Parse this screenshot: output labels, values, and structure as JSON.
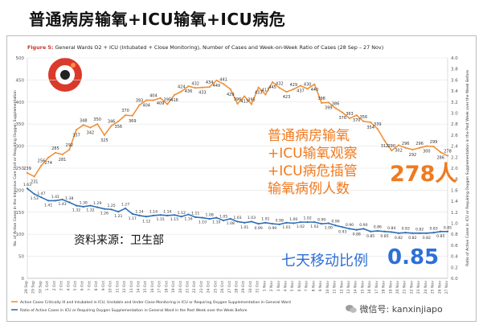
{
  "page_title": "普通病房输氧+ICU输氧+ICU病危",
  "figure": {
    "label": "Figure 5:",
    "title": "General Wards O2 + ICU (Intubated + Close Monitoring), Number of Cases and Week-on-Week Ratio of Cases (28 Sep – 27 Nov)"
  },
  "annotation": {
    "lines": [
      "普通病房输氧",
      "+ICU输氧观察",
      "+ICU病危插管",
      "输氧病例人数"
    ],
    "value": "278人"
  },
  "source_text": "资料来源：卫生部",
  "wow": {
    "label": "七天移动比例",
    "value": "0.85"
  },
  "watermark": "微信号: kanxinjiapo",
  "colors": {
    "orange": "#f0913a",
    "blue": "#2f6eb5",
    "grid": "#e3e3e3",
    "accent_text": "#f07a1e"
  },
  "chart_data": {
    "type": "line",
    "ylabel_left": "No. of Active Cases in the Intensive Care Unit or Requiring Oxygen Supplementation",
    "ylabel_right": "Ratio of Active Cases in ICU or Requiring Oxygen Supplementation in the Past Week over the Week Before",
    "ylim_left": [
      0,
      500
    ],
    "ylim_right": [
      0,
      4.0
    ],
    "yticks_left": [
      "0",
      "50",
      "100",
      "150",
      "200",
      "250",
      "300",
      "350",
      "400",
      "450",
      "500"
    ],
    "yticks_right": [
      "0.0",
      "0.2",
      "0.4",
      "0.6",
      "0.8",
      "1.0",
      "1.2",
      "1.4",
      "1.6",
      "1.8",
      "2.0",
      "2.2",
      "2.4",
      "2.6",
      "2.8",
      "3.0",
      "3.2",
      "3.4",
      "3.6",
      "3.8",
      "4.0"
    ],
    "x": [
      "28 Sep",
      "29 Sep",
      "30 Sep",
      "1 Oct",
      "2 Oct",
      "3 Oct",
      "4 Oct",
      "5 Oct",
      "6 Oct",
      "7 Oct",
      "8 Oct",
      "9 Oct",
      "10 Oct",
      "11 Oct",
      "12 Oct",
      "13 Oct",
      "14 Oct",
      "15 Oct",
      "16 Oct",
      "17 Oct",
      "18 Oct",
      "19 Oct",
      "20 Oct",
      "21 Oct",
      "22 Oct",
      "23 Oct",
      "24 Oct",
      "25 Oct",
      "26 Oct",
      "27 Oct",
      "28 Oct",
      "29 Oct",
      "30 Oct",
      "31 Oct",
      "1 Nov",
      "2 Nov",
      "3 Nov",
      "4 Nov",
      "5 Nov",
      "6 Nov",
      "7 Nov",
      "8 Nov",
      "9 Nov",
      "10 Nov",
      "11 Nov",
      "12 Nov",
      "13 Nov",
      "14 Nov",
      "15 Nov",
      "16 Nov",
      "17 Nov",
      "18 Nov",
      "19 Nov",
      "20 Nov",
      "21 Nov",
      "22 Nov",
      "23 Nov",
      "24 Nov",
      "25 Nov",
      "26 Nov",
      "27 Nov"
    ],
    "series": [
      {
        "name": "Active Cases Critically Ill and Intubated in ICU, Unstable and Under Close Monitoring in ICU or Requiring Oxygen Supplementation in General Ward",
        "axis": "left",
        "values": [
          239,
          231,
          256,
          274,
          285,
          281,
          292,
          337,
          348,
          342,
          350,
          325,
          346,
          356,
          370,
          369,
          393,
          404,
          404,
          409,
          395,
          416,
          424,
          436,
          432,
          433,
          434,
          449,
          441,
          429,
          396,
          413,
          395,
          433,
          417,
          445,
          432,
          423,
          429,
          437,
          430,
          440,
          398,
          399,
          386,
          376,
          363,
          370,
          356,
          354,
          339,
          312,
          290,
          302,
          296,
          292,
          296,
          300,
          299,
          286,
          278
        ],
        "labels": [
          "239",
          "231",
          "256",
          "274",
          "285",
          "281",
          "292",
          "337",
          "348",
          "342",
          "350",
          "325",
          "346",
          "356",
          "370",
          "369",
          "393",
          "404",
          "404",
          "409",
          "395",
          "416",
          "424",
          "436",
          "432",
          "433",
          "434",
          "449",
          "441",
          "429",
          "396",
          "413",
          "395",
          "433",
          "417",
          "445",
          "432",
          "423",
          "429",
          "437",
          "430",
          "440",
          "398",
          "399",
          "386",
          "376",
          "363",
          "370",
          "356",
          "354",
          "339",
          "312",
          "290",
          "302",
          "296",
          "292",
          "296",
          "300",
          "299",
          "286",
          "278"
        ]
      },
      {
        "name": "Ratio of Active Cases in ICU or Requiring Oxygen Supplementation in General Ward in the Past Week over the Week Before",
        "axis": "right",
        "values": [
          1.63,
          1.53,
          1.47,
          1.41,
          1.41,
          1.43,
          1.38,
          1.32,
          1.3,
          1.32,
          1.29,
          1.26,
          1.25,
          1.21,
          1.27,
          1.17,
          1.14,
          1.12,
          1.14,
          1.15,
          1.14,
          1.15,
          1.12,
          1.16,
          1.11,
          1.1,
          1.08,
          1.1,
          1.05,
          1.08,
          1.03,
          1.01,
          1.03,
          0.99,
          1.01,
          0.99,
          0.98,
          1.01,
          1.0,
          1.02,
          1.02,
          1.02,
          0.99,
          1.0,
          0.96,
          0.93,
          0.9,
          0.88,
          0.9,
          0.85,
          0.86,
          0.85,
          0.84,
          0.82,
          0.83,
          0.82,
          0.82,
          0.82,
          0.83,
          0.85,
          0.85
        ],
        "labels": [
          "1.63",
          "1.53",
          "1.47",
          "1.41",
          "1.41",
          "1.43",
          "1.38",
          "1.32",
          "1.30",
          "1.32",
          "1.29",
          "1.26",
          "1.25",
          "1.21",
          "1.27",
          "1.17",
          "1.14",
          "1.12",
          "1.14",
          "1.15",
          "1.14",
          "1.15",
          "1.12",
          "1.16",
          "1.11",
          "1.10",
          "1.08",
          "1.10",
          "1.05",
          "1.08",
          "1.03",
          "1.01",
          "1.03",
          "0.99",
          "1.01",
          "0.99",
          "0.98",
          "1.01",
          "1.00",
          "1.02",
          "1.02",
          "1.02",
          "0.99",
          "1.00",
          "0.96",
          "0.93",
          "0.90",
          "0.88",
          "0.90",
          "0.85",
          "0.86",
          "0.85",
          "0.84",
          "0.82",
          "0.83",
          "0.82",
          "0.82",
          "0.82",
          "0.83",
          "0.85",
          "0.85"
        ]
      }
    ],
    "legend": [
      "Active Cases Critically Ill and Intubated in ICU, Unstable and Under Close Monitoring in ICU or Requiring Oxygen Supplementation in General Ward",
      "Ratio of Active Cases in ICU or Requiring Oxygen Supplementation in General Ward in the Past Week over the Week Before"
    ],
    "legend_position": "bottom"
  }
}
